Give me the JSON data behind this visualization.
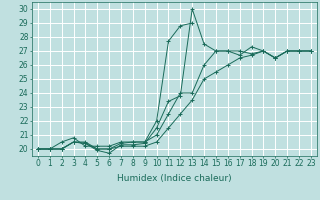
{
  "title": "",
  "xlabel": "Humidex (Indice chaleur)",
  "ylabel": "",
  "xlim": [
    -0.5,
    23.5
  ],
  "ylim": [
    19.5,
    30.5
  ],
  "xticks": [
    0,
    1,
    2,
    3,
    4,
    5,
    6,
    7,
    8,
    9,
    10,
    11,
    12,
    13,
    14,
    15,
    16,
    17,
    18,
    19,
    20,
    21,
    22,
    23
  ],
  "yticks": [
    20,
    21,
    22,
    23,
    24,
    25,
    26,
    27,
    28,
    29,
    30
  ],
  "background_color": "#c0e0e0",
  "grid_color": "#ffffff",
  "line_color": "#1a6b5a",
  "series": [
    [
      20.0,
      20.0,
      20.0,
      20.5,
      20.4,
      19.9,
      19.7,
      20.3,
      20.3,
      20.4,
      21.5,
      23.4,
      23.8,
      30.0,
      27.5,
      27.0,
      27.0,
      26.7,
      27.3,
      27.0,
      26.5,
      27.0,
      27.0,
      27.0
    ],
    [
      20.0,
      20.0,
      20.5,
      20.8,
      20.2,
      20.2,
      20.2,
      20.5,
      20.5,
      20.5,
      22.0,
      27.7,
      28.8,
      29.0,
      null,
      null,
      null,
      null,
      null,
      null,
      null,
      null,
      null,
      null
    ],
    [
      20.0,
      20.0,
      20.0,
      20.5,
      20.4,
      20.0,
      20.0,
      20.4,
      20.5,
      20.5,
      21.0,
      22.5,
      24.0,
      24.0,
      26.0,
      27.0,
      27.0,
      27.0,
      26.8,
      27.0,
      26.5,
      27.0,
      27.0,
      27.0
    ],
    [
      20.0,
      20.0,
      20.0,
      20.5,
      20.5,
      20.0,
      20.0,
      20.2,
      20.2,
      20.2,
      20.5,
      21.5,
      22.5,
      23.5,
      25.0,
      25.5,
      26.0,
      26.5,
      26.7,
      27.0,
      26.5,
      27.0,
      27.0,
      27.0
    ]
  ],
  "tick_fontsize": 5.5,
  "xlabel_fontsize": 6.5
}
